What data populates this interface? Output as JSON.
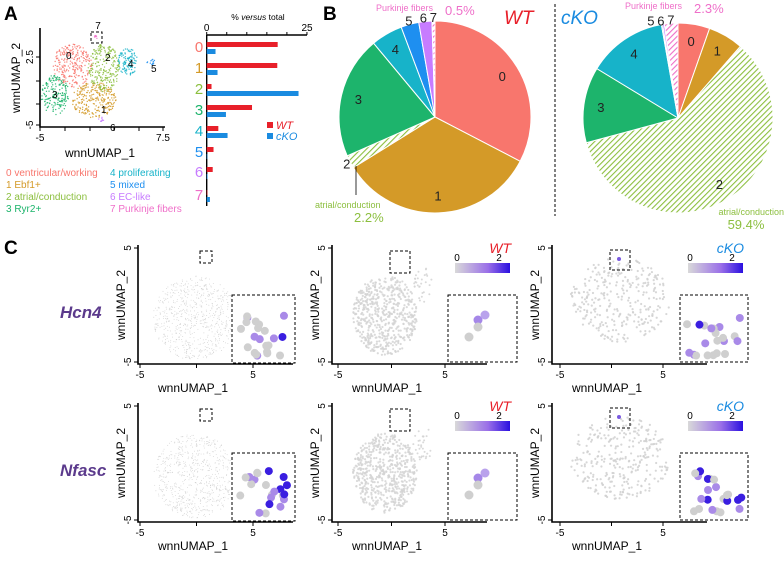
{
  "panels": {
    "a": "A",
    "b": "B",
    "c": "C"
  },
  "colors": {
    "c0": "#f8766d",
    "c1": "#d49a28",
    "c2": "#8cbf3f",
    "c3": "#1db46c",
    "c4": "#17b3c9",
    "c5": "#1e8ff0",
    "c6": "#c77cff",
    "c7": "#ef6fc9",
    "wt": "#e8202a",
    "cko": "#1a8be0",
    "gene": "#5b3a8c",
    "expr_low": "#d9d9d9",
    "expr_high": "#2a10e0"
  },
  "umap": {
    "xlabel": "wnnUMAP_1",
    "ylabel": "wnnUMAP_2",
    "a_xticks": [
      "-5",
      "7.5"
    ],
    "a_yticks": [
      "2.5",
      "-5"
    ],
    "c_xticks": [
      "-5",
      "5"
    ],
    "c_yticks": [
      "5",
      "-5"
    ],
    "cluster_labels": [
      "0",
      "1",
      "2",
      "3",
      "4",
      "5",
      "6",
      "7"
    ]
  },
  "legend": [
    {
      "num": "0",
      "label": "ventricular/working"
    },
    {
      "num": "1",
      "label": "Ebf1+"
    },
    {
      "num": "2",
      "label": "atrial/conduction"
    },
    {
      "num": "3",
      "label": "Ryr2+"
    },
    {
      "num": "4",
      "label": "proliferating"
    },
    {
      "num": "5",
      "label": "mixed"
    },
    {
      "num": "6",
      "label": "EC-like"
    },
    {
      "num": "7",
      "label": "Purkinje fibers"
    }
  ],
  "chart_data": [
    {
      "type": "bar",
      "orientation": "horizontal",
      "title_prefix": "% ",
      "title_italic": "versus",
      "title_suffix": " total",
      "categories": [
        "0",
        "1",
        "2",
        "3",
        "4",
        "5",
        "6",
        "7"
      ],
      "xlim": [
        0,
        25
      ],
      "xtick_labels": [
        "0",
        "25"
      ],
      "series": [
        {
          "name": "WT",
          "values": [
            17.7,
            17.6,
            1.2,
            11.3,
            2.9,
            1.7,
            1.5,
            0.1
          ]
        },
        {
          "name": "cKO",
          "values": [
            2.2,
            2.7,
            22.9,
            4.8,
            5.2,
            0.1,
            0.2,
            0.8
          ]
        }
      ],
      "legend_position": "right"
    },
    {
      "type": "pie",
      "title": "WT",
      "labels": [
        "0",
        "1",
        "2",
        "3",
        "4",
        "5",
        "6",
        "7"
      ],
      "values": [
        32.5,
        33.4,
        2.2,
        20.5,
        5.3,
        3.0,
        2.2,
        0.5
      ],
      "hatched": [
        "2",
        "7"
      ],
      "annotations": [
        {
          "label": "Purkinje fibers",
          "value": "0.5%"
        },
        {
          "label": "atrial/conduction",
          "value": "2.2%"
        }
      ]
    },
    {
      "type": "pie",
      "title": "cKO",
      "labels": [
        "0",
        "1",
        "2",
        "3",
        "4",
        "5",
        "6",
        "7"
      ],
      "values": [
        5.4,
        6.0,
        59.4,
        12.9,
        13.5,
        0.2,
        0.3,
        2.3
      ],
      "hatched": [
        "2",
        "7"
      ],
      "annotations": [
        {
          "label": "Purkinje fibers",
          "value": "2.3%"
        },
        {
          "label": "atrial/conduction",
          "value": "59.4%"
        }
      ]
    }
  ],
  "feature_plots": {
    "genes": [
      "Hcn4",
      "Nfasc"
    ],
    "conditions": [
      "WT",
      "cKO"
    ],
    "colorbar_ticks": [
      "0",
      "2"
    ]
  }
}
